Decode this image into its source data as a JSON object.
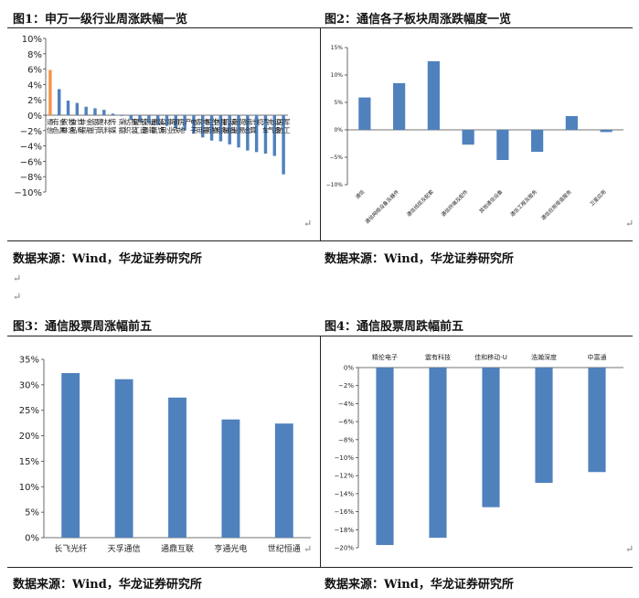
{
  "panels": [
    {
      "title": "图1：申万一级行业周涨跌幅一览",
      "source": "数据来源：Wind，华龙证券研究所"
    },
    {
      "title": "图2：通信各子板块周涨跌幅度一览",
      "source": "数据来源：Wind，华龙证券研究所"
    },
    {
      "title": "图3：通信股票周涨幅前五",
      "source": "数据来源：Wind，华龙证券研究所"
    },
    {
      "title": "图4：通信股票周跌幅前五",
      "source": "数据来源：Wind，华龙证券研究所"
    }
  ],
  "para_mark": "↵",
  "chart_data": [
    {
      "type": "bar",
      "categories": [
        "通信",
        "有色金属",
        "农林牧渔",
        "食品饮料",
        "非银金融",
        "银行",
        "建筑材料",
        "传媒",
        "采掘",
        "纺织服装",
        "轻工制造",
        "交通运输",
        "建筑装饰",
        "公用事业",
        "钢铁",
        "房地产",
        "电子",
        "家用电器",
        "医药生物",
        "休闲服务",
        "机械设备",
        "商业贸易",
        "综合",
        "计算机",
        "汽车",
        "电气设备",
        "国防军工"
      ],
      "values": [
        5.9,
        3.4,
        1.9,
        1.6,
        1.1,
        0.9,
        0.7,
        0.2,
        -0.1,
        -0.6,
        -0.9,
        -1.1,
        -1.3,
        -1.4,
        -1.7,
        -2.0,
        -2.4,
        -2.9,
        -3.3,
        -3.4,
        -3.8,
        -4.2,
        -4.6,
        -4.8,
        -5.0,
        -5.3,
        -7.7
      ],
      "highlight": "#f0944a",
      "color": "#4f81bd",
      "ylim": [
        -10,
        10
      ],
      "yticks": [
        "10%",
        "8%",
        "6%",
        "4%",
        "2%",
        "0%",
        "−2%",
        "−4%",
        "−6%",
        "−8%",
        "−10%"
      ]
    },
    {
      "type": "bar",
      "categories": [
        "通信",
        "通信网络设备及器件",
        "通信线缆及配套",
        "通信终端及配件",
        "其他通信设备",
        "通信工程及服务",
        "通信应用增值服务",
        "卫星应用"
      ],
      "values": [
        5.9,
        8.5,
        12.5,
        -2.7,
        -5.5,
        -4.0,
        2.5,
        -0.4
      ],
      "color": "#4f81bd",
      "ylim": [
        -10,
        15
      ],
      "yticks": [
        "15%",
        "10%",
        "5%",
        "0%",
        "−5%",
        "−10%"
      ]
    },
    {
      "type": "bar",
      "categories": [
        "长飞光纤",
        "天孚通信",
        "通鼎互联",
        "亨通光电",
        "世纪恒通"
      ],
      "values": [
        32.3,
        31.1,
        27.5,
        23.2,
        22.4
      ],
      "color": "#4f81bd",
      "ylim": [
        0,
        35
      ],
      "yticks": [
        "35%",
        "30%",
        "25%",
        "20%",
        "15%",
        "10%",
        "5%",
        "0%"
      ]
    },
    {
      "type": "bar",
      "categories": [
        "精伦电子",
        "震有科技",
        "佳和移动-U",
        "浩瀚深度",
        "中富通"
      ],
      "values": [
        -19.7,
        -18.9,
        -15.5,
        -12.8,
        -11.6
      ],
      "color": "#4f81bd",
      "ylim": [
        -20,
        0
      ],
      "yticks": [
        "0%",
        "−2%",
        "−4%",
        "−6%",
        "−8%",
        "−10%",
        "−12%",
        "−14%",
        "−16%",
        "−18%",
        "−20%"
      ]
    }
  ]
}
